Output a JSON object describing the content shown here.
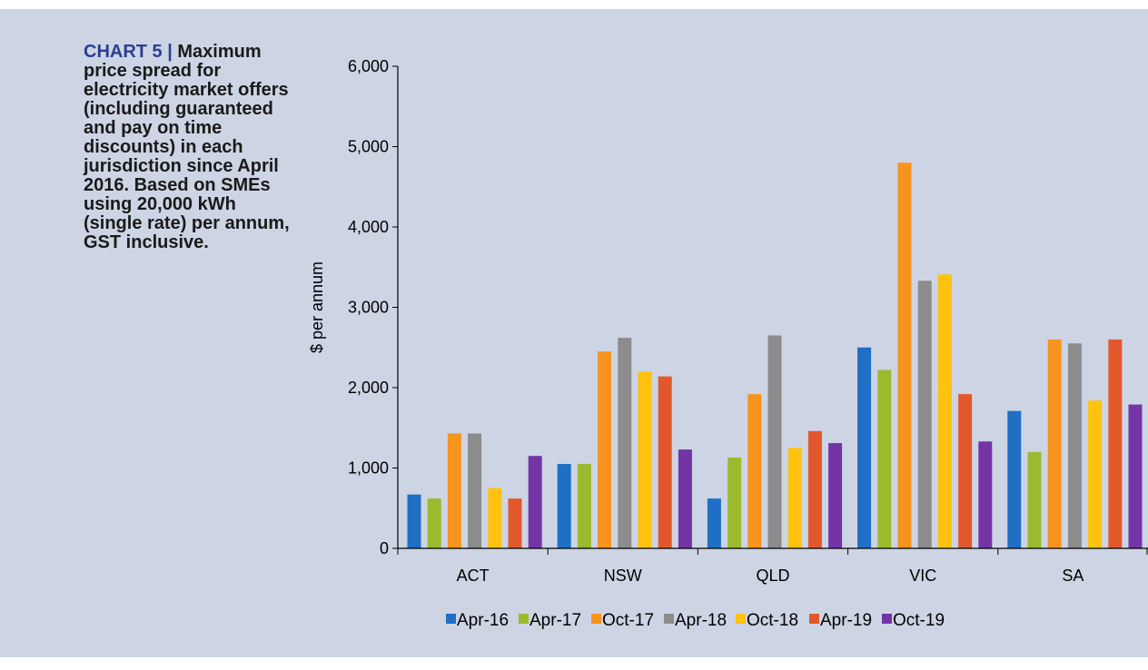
{
  "caption": {
    "tag": "CHART 5 |",
    "text": "Maximum\nprice spread for\nelectricity market offers\n(including guaranteed\nand pay on time\ndiscounts) in each\njurisdiction since April\n2016. Based on SMEs\nusing 20,000 kWh\n(single rate) per annum,\nGST inclusive."
  },
  "chart_data": {
    "type": "bar",
    "title": "",
    "xlabel": "",
    "ylabel": "$ per annum",
    "ylim": [
      0,
      6000
    ],
    "yticks": [
      0,
      1000,
      2000,
      3000,
      4000,
      5000,
      6000
    ],
    "ytick_labels": [
      "0",
      "1,000",
      "2,000",
      "3,000",
      "4,000",
      "5,000",
      "6,000"
    ],
    "categories": [
      "ACT",
      "NSW",
      "QLD",
      "VIC",
      "SA"
    ],
    "legend_position": "bottom",
    "grid": false,
    "series": [
      {
        "name": "Apr-16",
        "color": "#1f6fc5",
        "values": [
          670,
          1050,
          620,
          2500,
          1710
        ]
      },
      {
        "name": "Apr-17",
        "color": "#9bbb2f",
        "values": [
          620,
          1050,
          1130,
          2220,
          1200
        ]
      },
      {
        "name": "Oct-17",
        "color": "#f7941d",
        "values": [
          1430,
          2450,
          1920,
          4800,
          2600
        ]
      },
      {
        "name": "Apr-18",
        "color": "#8c8c8c",
        "values": [
          1430,
          2620,
          2650,
          3330,
          2550
        ]
      },
      {
        "name": "Oct-18",
        "color": "#ffc20e",
        "values": [
          750,
          2200,
          1250,
          3410,
          1840
        ]
      },
      {
        "name": "Apr-19",
        "color": "#e2582d",
        "values": [
          620,
          2140,
          1460,
          1920,
          2600
        ]
      },
      {
        "name": "Oct-19",
        "color": "#7434a6",
        "values": [
          1150,
          1230,
          1310,
          1330,
          1790
        ]
      }
    ]
  }
}
